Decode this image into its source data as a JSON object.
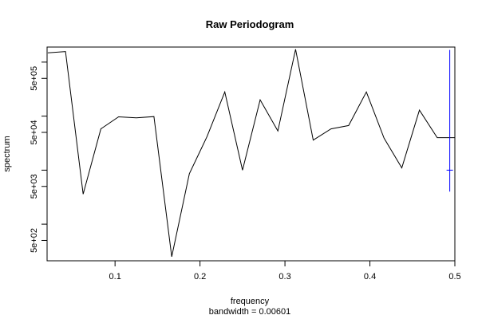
{
  "chart_data": {
    "type": "line",
    "title": "Raw Periodogram",
    "xlabel": "frequency",
    "xlabel_sub": "bandwidth = 0.00601",
    "ylabel": "spectrum",
    "y_scale": "log",
    "xlim": [
      0.02,
      0.5
    ],
    "ylim": [
      210,
      1900000
    ],
    "x_ticks": [
      0.1,
      0.2,
      0.3,
      0.4,
      0.5
    ],
    "x_tick_labels": [
      "0.1",
      "0.2",
      "0.3",
      "0.4",
      "0.5"
    ],
    "y_ticks": [
      500,
      5000,
      50000,
      500000
    ],
    "y_tick_labels": [
      "5e+02",
      "5e+03",
      "5e+04",
      "5e+05"
    ],
    "y_minor_ticks": [
      1000,
      10000,
      100000,
      1000000
    ],
    "series": [
      {
        "color": "#000000",
        "x": [
          0.0208,
          0.0417,
          0.0625,
          0.0833,
          0.1042,
          0.125,
          0.1458,
          0.1667,
          0.1875,
          0.2083,
          0.2292,
          0.25,
          0.2708,
          0.2917,
          0.3125,
          0.3333,
          0.3542,
          0.375,
          0.3958,
          0.4167,
          0.4375,
          0.4583,
          0.4792,
          0.5
        ],
        "y": [
          1480000,
          1570000,
          3600,
          58000,
          97000,
          93000,
          98000,
          250,
          8600,
          42000,
          280000,
          10000,
          200000,
          53000,
          1730000,
          36000,
          58000,
          67000,
          280000,
          39000,
          11000,
          129000,
          40000,
          40000
        ]
      }
    ],
    "confidence_interval": {
      "color": "#0000ff",
      "x": 0.494,
      "lower": 4000,
      "upper": 1680000,
      "center": 10000
    }
  }
}
